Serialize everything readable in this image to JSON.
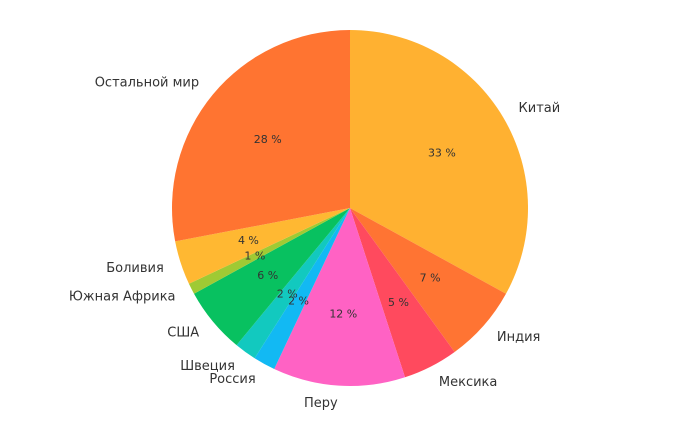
{
  "chart_data": {
    "type": "pie",
    "categories": [
      "Китай",
      "Индия",
      "Мексика",
      "Перу",
      "Россия",
      "Швеция",
      "США",
      "Южная Африка",
      "Боливия",
      "Остальной мир"
    ],
    "values": [
      33,
      7,
      5,
      12,
      2,
      2,
      6,
      1,
      4,
      28
    ],
    "value_labels": [
      "33 %",
      "7 %",
      "5 %",
      "12 %",
      "2 %",
      "2 %",
      "6 %",
      "1 %",
      "4 %",
      "28 %"
    ],
    "colors": [
      "#ffb131",
      "#ff7433",
      "#ff4a5e",
      "#ff62c4",
      "#12b9f3",
      "#12c9bf",
      "#08c160",
      "#9fca34",
      "#ffb832",
      "#ff7431"
    ]
  }
}
